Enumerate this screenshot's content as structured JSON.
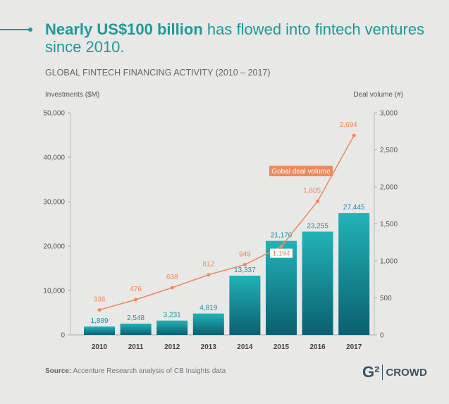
{
  "headline": {
    "bold": "Nearly US$100 billion",
    "rest": " has flowed into fintech ventures since 2010."
  },
  "subtitle": "GLOBAL FINTECH FINANCING ACTIVITY (2010 – 2017)",
  "source": {
    "label": "Source:",
    "text": " Accenture Research analysis of CB Insights data"
  },
  "logo": {
    "text": "CROWD",
    "mark": "G2"
  },
  "colors": {
    "accent": "#1e9a98",
    "line": "#ec8a5e",
    "bar": "#1aa0a8"
  },
  "chart_data": {
    "type": "bar+line",
    "categories": [
      "2010",
      "2011",
      "2012",
      "2013",
      "2014",
      "2015",
      "2016",
      "2017"
    ],
    "ylabel": "Investments ($M)",
    "y2label": "Deal volume (#)",
    "ylim": [
      0,
      50000
    ],
    "y2lim": [
      0,
      3000
    ],
    "yticks": [
      "0",
      "10,000",
      "20,000",
      "30,000",
      "40,000",
      "50,000"
    ],
    "y2ticks": [
      "0",
      "500",
      "1,000",
      "1,500",
      "2,000",
      "2,500",
      "3,000"
    ],
    "series": [
      {
        "type": "bar",
        "values": [
          1889,
          2548,
          3231,
          4819,
          13337,
          21170,
          23255,
          27445
        ],
        "labels": [
          "1,889",
          "2,548",
          "3,231",
          "4,819",
          "13,337",
          "21,170",
          "23,255",
          "27,445"
        ]
      },
      {
        "type": "line",
        "name": "Gobal deal volume",
        "values": [
          338,
          476,
          638,
          812,
          949,
          1194,
          1805,
          2694
        ],
        "labels": [
          "338",
          "476",
          "638",
          "812",
          "949",
          "1,194",
          "1,805",
          "2,694"
        ]
      }
    ]
  }
}
